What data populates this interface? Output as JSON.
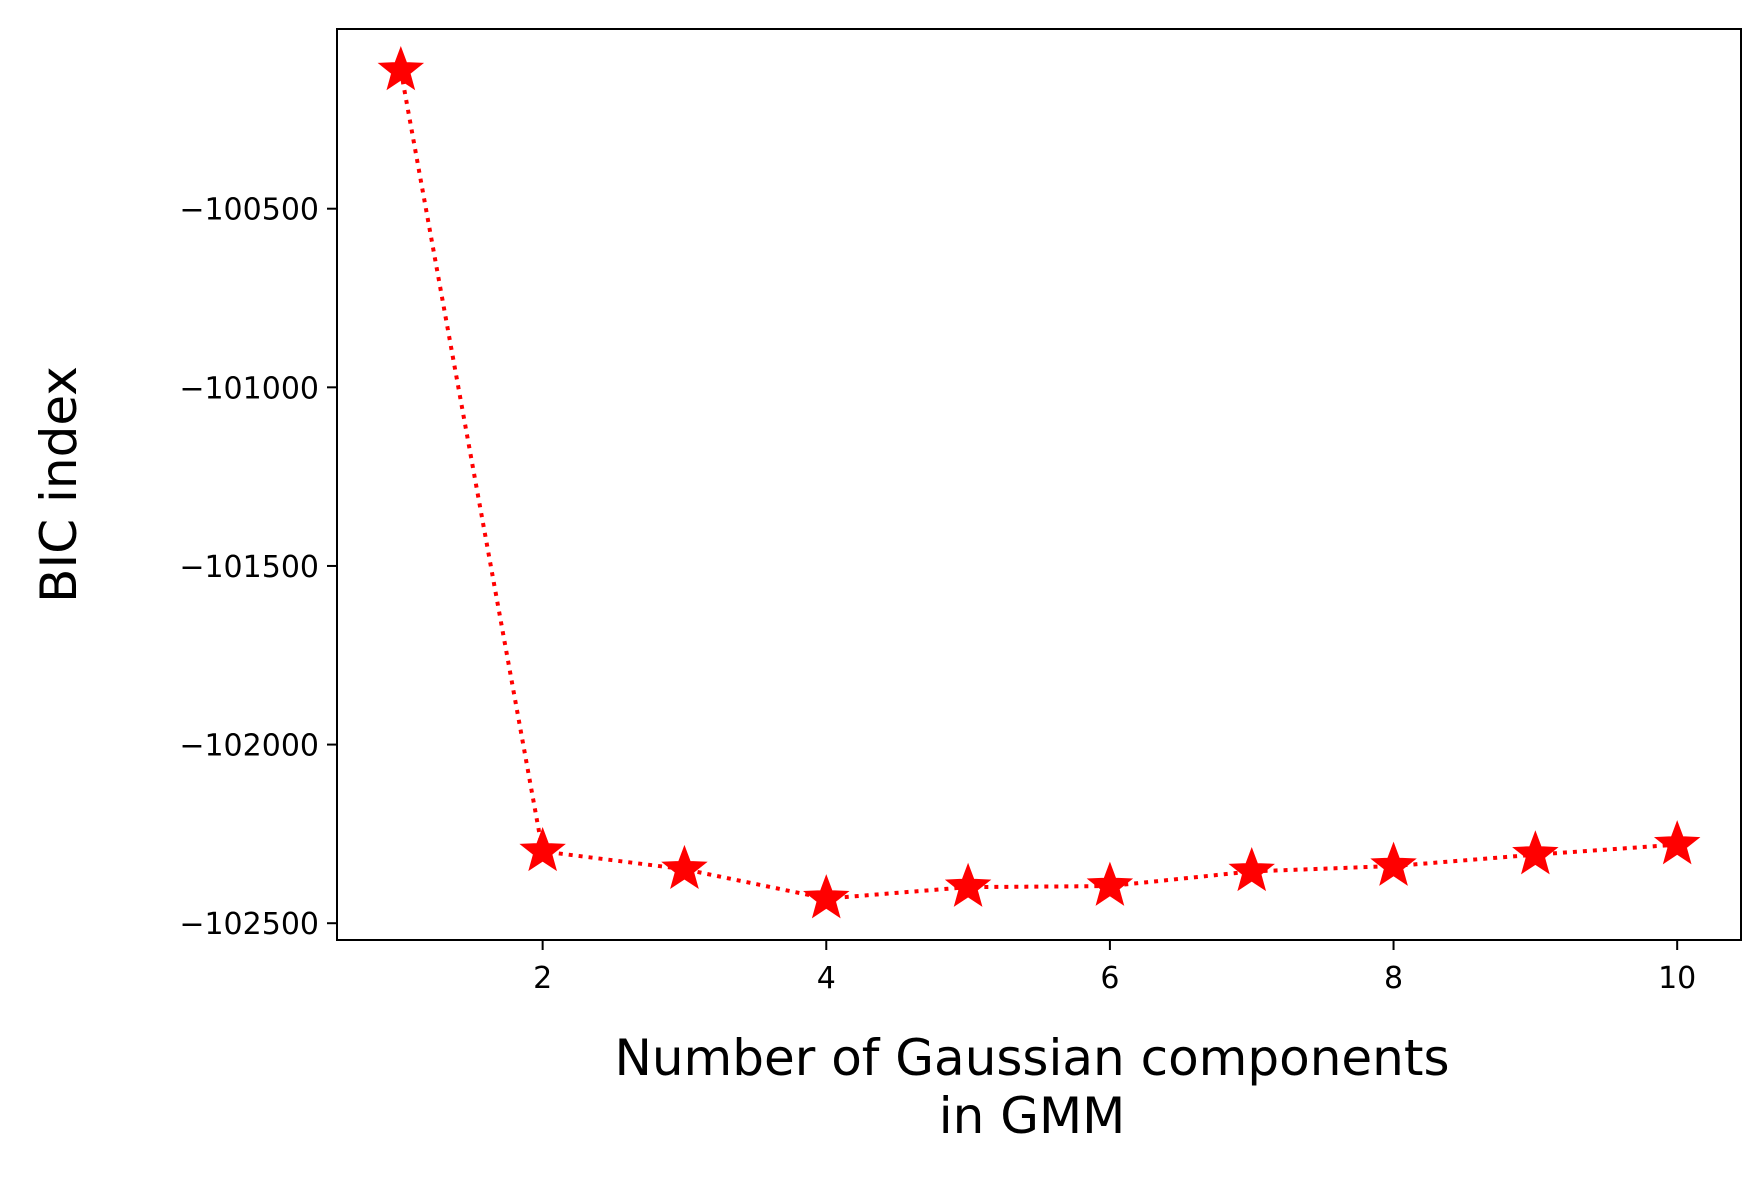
{
  "chart_data": {
    "type": "line",
    "xlabel": "Number of Gaussian components\nin GMM",
    "ylabel": "BIC index",
    "x": [
      1,
      2,
      3,
      4,
      5,
      6,
      7,
      8,
      9,
      10
    ],
    "series": [
      {
        "color": "#ff0000",
        "marker": "star",
        "linestyle": "dotted",
        "values": [
          -100113,
          -102299,
          -102349,
          -102431,
          -102399,
          -102396,
          -102355,
          -102340,
          -102308,
          -102280
        ]
      }
    ],
    "xlim": [
      0.55,
      10.45
    ],
    "ylim": [
      -102547,
      -99997
    ],
    "xticks": [
      2,
      4,
      6,
      8,
      10
    ],
    "yticks": [
      {
        "value": -100500,
        "label": "−100500"
      },
      {
        "value": -101000,
        "label": "−101000"
      },
      {
        "value": -101500,
        "label": "−101500"
      },
      {
        "value": -102000,
        "label": "−102000"
      },
      {
        "value": -102500,
        "label": "−102500"
      }
    ],
    "grid": false
  }
}
